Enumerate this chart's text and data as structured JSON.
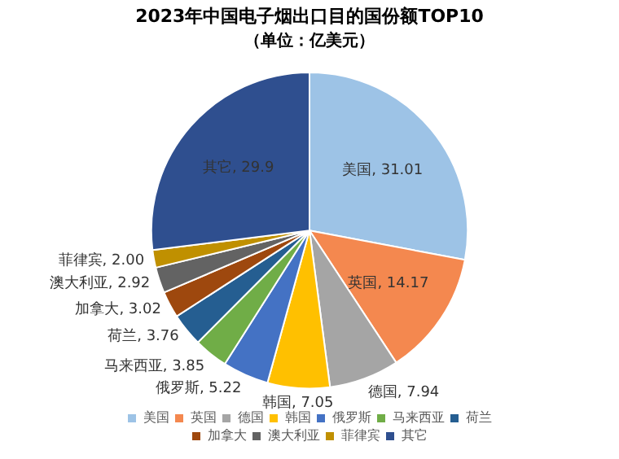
{
  "chart_data": {
    "type": "pie",
    "title": "2023年中国电子烟出口目的国份额TOP10",
    "subtitle": "（单位：亿美元）",
    "categories": [
      "美国",
      "英国",
      "德国",
      "韩国",
      "俄罗斯",
      "马来西亚",
      "荷兰",
      "加拿大",
      "澳大利亚",
      "菲律宾",
      "其它"
    ],
    "values": [
      31.01,
      14.17,
      7.94,
      7.05,
      5.22,
      3.85,
      3.76,
      3.02,
      2.92,
      2.0,
      29.9
    ],
    "colors": [
      "#9dc3e6",
      "#f4884f",
      "#a5a5a5",
      "#ffc000",
      "#4472c4",
      "#70ad47",
      "#255e91",
      "#9e480e",
      "#636363",
      "#c09000",
      "#2f4f8f"
    ],
    "value_labels": [
      "美国, 31.01",
      "英国, 14.17",
      "德国, 7.94",
      "韩国, 7.05",
      "俄罗斯, 5.22",
      "马来西亚, 3.85",
      "荷兰, 3.76",
      "加拿大, 3.02",
      "澳大利亚, 2.92",
      "菲律宾, 2.00",
      "其它, 29.9"
    ],
    "legend": "bottom"
  }
}
